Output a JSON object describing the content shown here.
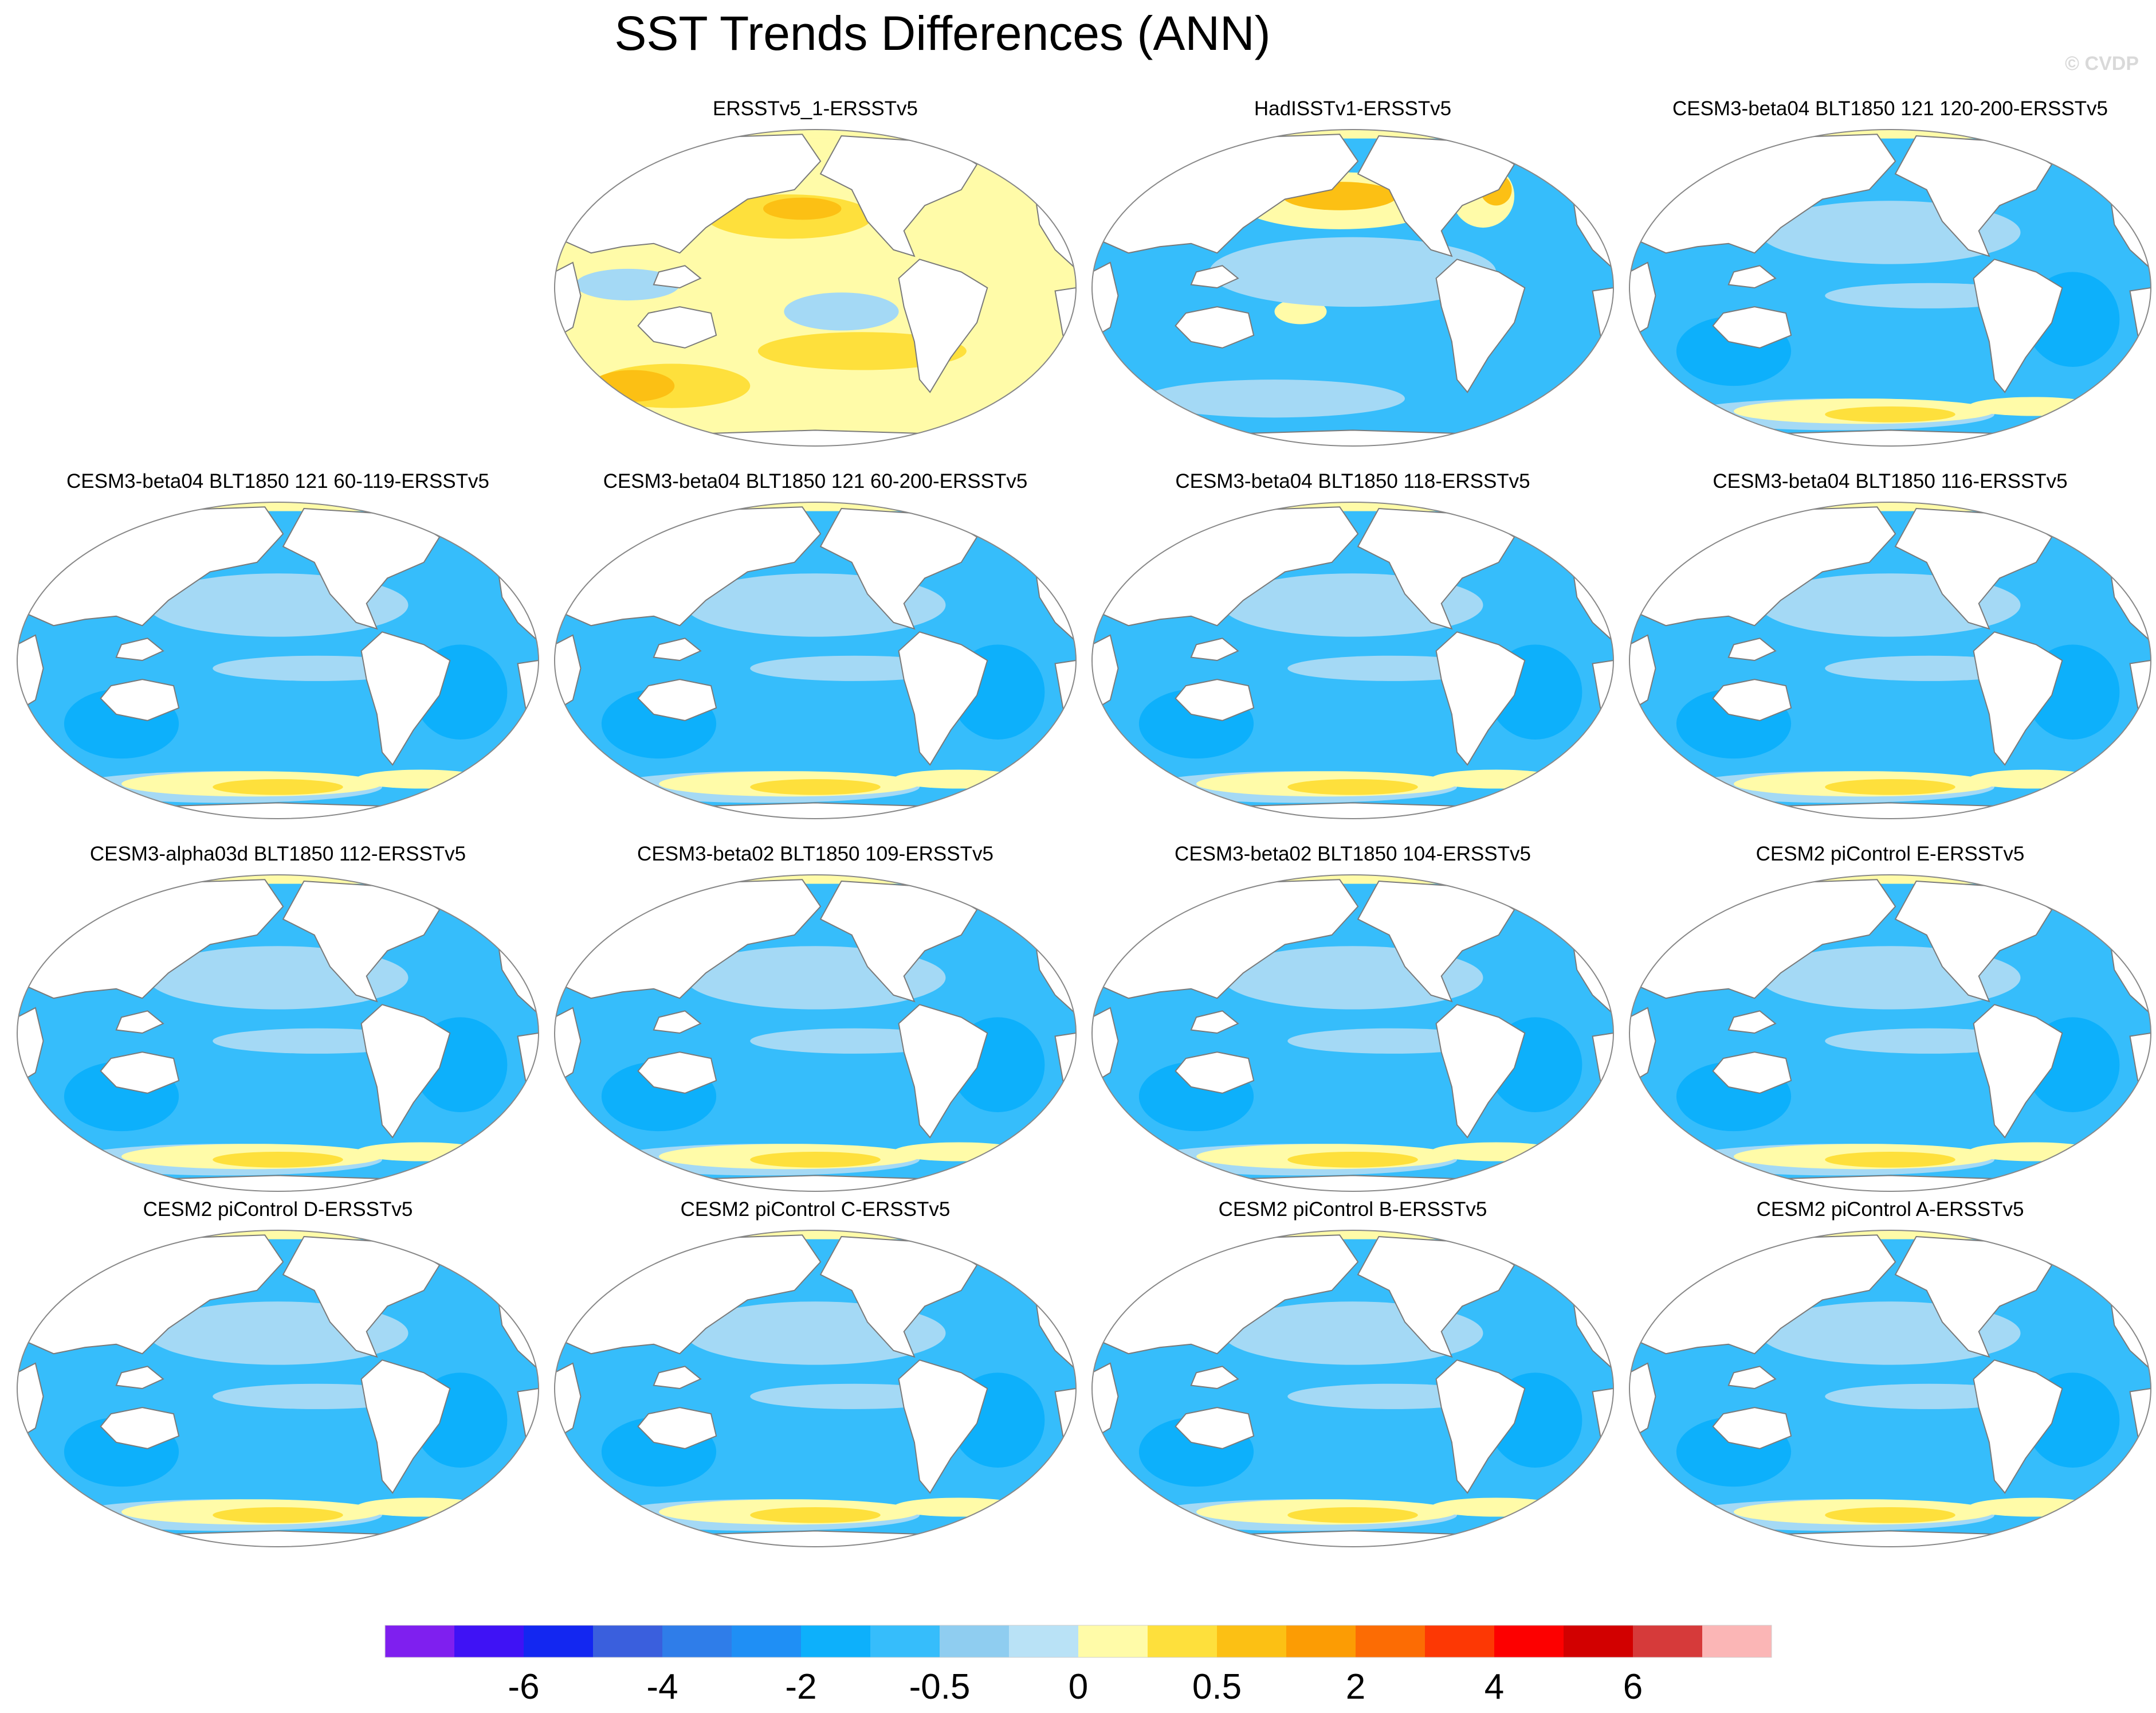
{
  "title": "SST Trends Differences (ANN)",
  "watermark": "© CVDP",
  "colors": {
    "land": "#ffffff",
    "coast": "#7a7a7a",
    "ocean_base": "#36bdfb",
    "ocean_deep": "#0db0fb",
    "ocean_light": "#a4d9f5",
    "ocean_pale": "#c8e8f7"
  },
  "panels": [
    {
      "title": "ERSSTv5_1-ERSSTv5",
      "regime": "warm"
    },
    {
      "title": "HadISSTv1-ERSSTv5",
      "regime": "mixed"
    },
    {
      "title": "CESM3-beta04 BLT1850 121 120-200-ERSSTv5",
      "regime": "cool"
    },
    {
      "title": "CESM3-beta04 BLT1850 121 60-119-ERSSTv5",
      "regime": "cool"
    },
    {
      "title": "CESM3-beta04 BLT1850 121 60-200-ERSSTv5",
      "regime": "cool"
    },
    {
      "title": "CESM3-beta04 BLT1850 118-ERSSTv5",
      "regime": "cool"
    },
    {
      "title": "CESM3-beta04 BLT1850 116-ERSSTv5",
      "regime": "cool"
    },
    {
      "title": "CESM3-alpha03d BLT1850 112-ERSSTv5",
      "regime": "cool"
    },
    {
      "title": "CESM3-beta02 BLT1850 109-ERSSTv5",
      "regime": "cool"
    },
    {
      "title": "CESM3-beta02 BLT1850 104-ERSSTv5",
      "regime": "cool"
    },
    {
      "title": "CESM2 piControl E-ERSSTv5",
      "regime": "cool"
    },
    {
      "title": "CESM2 piControl D-ERSSTv5",
      "regime": "cool"
    },
    {
      "title": "CESM2 piControl C-ERSSTv5",
      "regime": "cool"
    },
    {
      "title": "CESM2 piControl B-ERSSTv5",
      "regime": "cool"
    },
    {
      "title": "CESM2 piControl A-ERSSTv5",
      "regime": "cool"
    }
  ],
  "chart_data": {
    "type": "heatmap",
    "colorbar": {
      "colors": [
        "#7f1fef",
        "#3f12f5",
        "#1327f1",
        "#3a5fdd",
        "#2f7de9",
        "#1f8ff5",
        "#0db0fb",
        "#36bdfb",
        "#8fcdf0",
        "#b9e2f6",
        "#fffba8",
        "#fee03c",
        "#fcc014",
        "#fc9c04",
        "#fc6c04",
        "#fd3804",
        "#fd0000",
        "#d20000",
        "#d63a3a",
        "#fbb6b6"
      ],
      "tick_labels": [
        "-6",
        "-4",
        "-2",
        "-0.5",
        "0",
        "0.5",
        "2",
        "4",
        "6"
      ],
      "tick_boundary_index": [
        2,
        4,
        6,
        8,
        10,
        12,
        14,
        16,
        18
      ]
    }
  }
}
